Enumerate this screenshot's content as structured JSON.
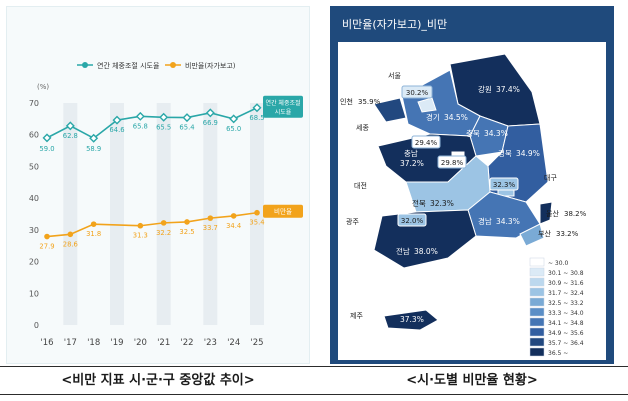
{
  "captions": {
    "left": "<비만 지표 시·군·구 중앙값 추이>",
    "right": "<시·도별 비만율 현황>"
  },
  "chart_data": [
    {
      "type": "line",
      "y_unit_label": "(%)",
      "ylim": [
        0,
        70
      ],
      "yticks": [
        0,
        10,
        20,
        30,
        40,
        50,
        60,
        70
      ],
      "categories": [
        "'16",
        "'17",
        "'18",
        "'19",
        "'20",
        "'21",
        "'22",
        "'23",
        "'24",
        "'25"
      ],
      "legend_placement": "top",
      "shaded_columns": [
        "'17",
        "'19",
        "'21",
        "'23",
        "'25"
      ],
      "series": [
        {
          "name": "연간 체중조절 시도율",
          "color": "#2aa7a8",
          "values": [
            59.0,
            62.8,
            58.9,
            64.6,
            65.8,
            65.5,
            65.4,
            66.9,
            65.0,
            68.5
          ],
          "end_label": "연간 체중조절 시도율"
        },
        {
          "name": "비만율(자가보고)",
          "color": "#f2a31b",
          "values": [
            27.9,
            28.6,
            31.8,
            null,
            31.3,
            32.2,
            32.5,
            33.7,
            34.4,
            35.4
          ],
          "end_label": "비만율"
        }
      ]
    },
    {
      "type": "map",
      "title": "비만율(자가보고)_비만",
      "regions": [
        {
          "name": "서울",
          "value": "30.2%"
        },
        {
          "name": "인천",
          "value": "35.9%"
        },
        {
          "name": "경기",
          "value": "34.5%"
        },
        {
          "name": "강원",
          "value": "37.4%"
        },
        {
          "name": "세종",
          "value": "29.4%"
        },
        {
          "name": "충북",
          "value": "34.3%"
        },
        {
          "name": "충남",
          "value": "37.2%"
        },
        {
          "name": "대전",
          "value": "29.8%"
        },
        {
          "name": "경북",
          "value": "34.9%"
        },
        {
          "name": "대구",
          "value": "32.3%"
        },
        {
          "name": "전북",
          "value": "32.3%"
        },
        {
          "name": "광주",
          "value": "32.0%"
        },
        {
          "name": "경남",
          "value": "34.3%"
        },
        {
          "name": "울산",
          "value": "38.2%"
        },
        {
          "name": "부산",
          "value": "33.2%"
        },
        {
          "name": "전남",
          "value": "38.0%"
        },
        {
          "name": "제주",
          "value": "37.3%"
        }
      ],
      "legend": [
        {
          "label": "~ 30.0",
          "color": "#ffffff"
        },
        {
          "label": "30.1 ~ 30.8",
          "color": "#dbeaf6"
        },
        {
          "label": "30.9 ~ 31.6",
          "color": "#bcd8ee"
        },
        {
          "label": "31.7 ~ 32.4",
          "color": "#9cc4e4"
        },
        {
          "label": "32.5 ~ 33.2",
          "color": "#7aaad5"
        },
        {
          "label": "33.3 ~ 34.0",
          "color": "#5b8ec6"
        },
        {
          "label": "34.1 ~ 34.8",
          "color": "#4575b4"
        },
        {
          "label": "34.9 ~ 35.6",
          "color": "#325ea0"
        },
        {
          "label": "35.7 ~ 36.4",
          "color": "#22487f"
        },
        {
          "label": "36.5 ~",
          "color": "#132f5c"
        }
      ]
    }
  ]
}
